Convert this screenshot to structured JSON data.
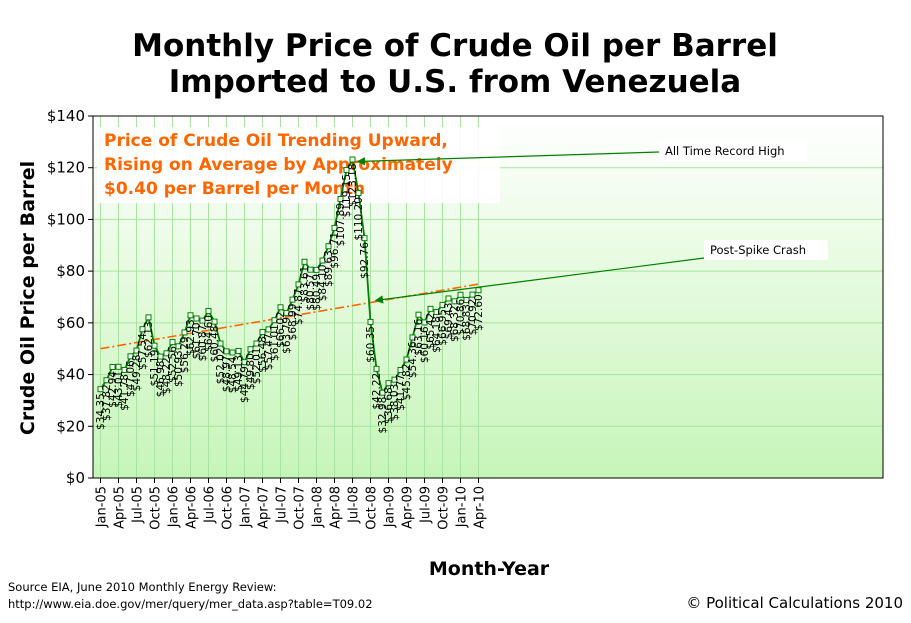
{
  "chart_data": {
    "type": "line",
    "title_lines": [
      "Monthly Price of Crude Oil per Barrel",
      "Imported to U.S. from Venezuela"
    ],
    "xlabel": "Month-Year",
    "ylabel": "Crude Oil Price per Barrel",
    "ylim": [
      0,
      140
    ],
    "yticks": [
      0,
      20,
      40,
      60,
      80,
      100,
      120,
      140
    ],
    "ytick_labels": [
      "$0",
      "$20",
      "$40",
      "$60",
      "$80",
      "$100",
      "$120",
      "$140"
    ],
    "xtick_labels": [
      "Jan-05",
      "Apr-05",
      "Jul-05",
      "Oct-05",
      "Jan-06",
      "Apr-06",
      "Jul-06",
      "Oct-06",
      "Jan-07",
      "Apr-07",
      "Jul-07",
      "Oct-07",
      "Jan-08",
      "Apr-08",
      "Jul-08",
      "Oct-08",
      "Jan-09",
      "Apr-09",
      "Jul-09",
      "Oct-09",
      "Jan-10",
      "Apr-10"
    ],
    "series": [
      {
        "name": "Monthly Price",
        "color": "#008000",
        "values": [
          34.35,
          37.82,
          42.94,
          43.01,
          41.78,
          47.06,
          49.28,
          57.54,
          62.13,
          51.19,
          46.98,
          48.22,
          52.56,
          50.93,
          56.29,
          62.93,
          61.7,
          60.87,
          64.6,
          60.48,
          52.02,
          48.97,
          48.54,
          49.13,
          44.79,
          49.8,
          52.01,
          56.48,
          57.47,
          61.01,
          66.02,
          63.79,
          68.99,
          74.87,
          83.61,
          80.57,
          80.49,
          84.1,
          89.63,
          96.71,
          107.89,
          119.15,
          123.18,
          110.2,
          92.76,
          60.35,
          42.22,
          32.98,
          36.68,
          38.03,
          41.77,
          45.82,
          54.36,
          63.16,
          60.16,
          65.42,
          64.18,
          66.95,
          69.43,
          68.32,
          70.86,
          68.83,
          70.92,
          72.6
        ],
        "labels": [
          "$34.35",
          "$37.82",
          "$42.94",
          "$43.01",
          "$41.78",
          "$47.06",
          "$49.28",
          "$57.54",
          "$62.13",
          "$51.19",
          "$46.98",
          "$48.22",
          "$52.56",
          "$50.93",
          "$56.29",
          "$62.93",
          "$61.70",
          "$60.87",
          "$64.60",
          "$60.48",
          "$52.02",
          "$48.97",
          "$48.54",
          "$49.13",
          "$44.79",
          "$49.80",
          "$52.01",
          "$56.48",
          "$57.47",
          "$61.01",
          "$66.02",
          "$63.79",
          "$68.99",
          "$74.87",
          "$83.61",
          "$80.57",
          "$80.49",
          "$84.10",
          "$89.63",
          "$96.71",
          "$107.89",
          "$119.15",
          "$123.18",
          "$110.20",
          "$92.76",
          "$60.35",
          "$42.22",
          "$32.98",
          "$36.68",
          "$38.03",
          "$41.77",
          "$45.82",
          "$54.36",
          "$63.16",
          "$60.16",
          "$65.42",
          "$64.18",
          "$66.95",
          "$69.43",
          "$68.32",
          "$70.86",
          "$68.83",
          "$70.92",
          "$72.60"
        ]
      },
      {
        "name": "Trend",
        "color": "#ff6600",
        "start": 50.0,
        "end": 75.0
      }
    ],
    "annotations": [
      {
        "text": "All Time Record High",
        "index": 42
      },
      {
        "text": "Post-Spike Crash",
        "index": 45
      }
    ],
    "trend_note_lines": [
      "Price of Crude Oil Trending Upward,",
      "Rising on Average by Approximately",
      "$0.40 per Barrel per Month"
    ],
    "grid": true
  },
  "source_lines": [
    "Source EIA, June 2010 Monthly Energy Review:",
    "http://www.eia.doe.gov/mer/query/mer_data.asp?table=T09.02"
  ],
  "copyright": "© Political Calculations 2010",
  "colors": {
    "plot_top": "#ffffff",
    "plot_bottom": "#c6f5b8",
    "grid": "#a8e4a0",
    "line": "#008000",
    "trend": "#ff6600"
  }
}
